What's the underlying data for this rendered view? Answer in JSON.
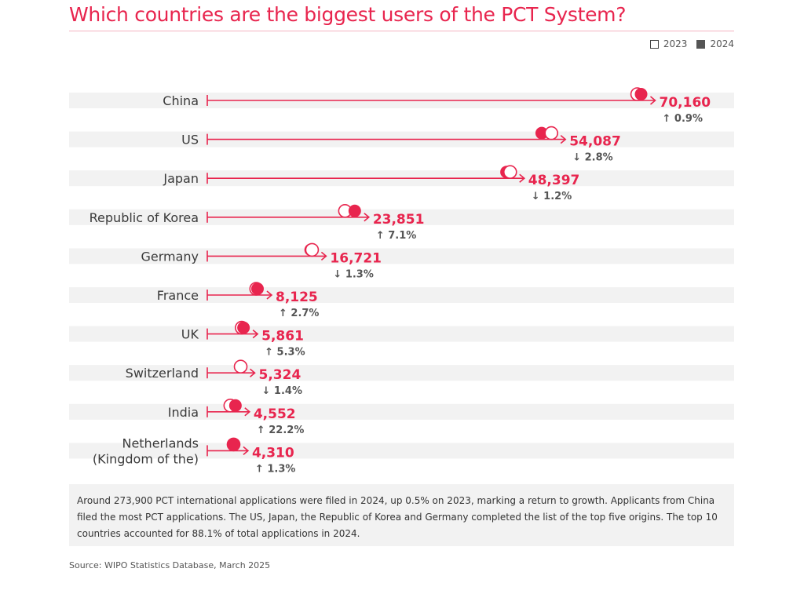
{
  "legend": {
    "label_2023": "2023",
    "label_2024": "2024"
  },
  "note": "Around 273,900 PCT international applications were filed in 2024, up 0.5% on 2023, marking a return to growth. Applicants from China filed the most PCT applications. The US, Japan, the Republic of Korea and Germany completed the list of the top five origins. The top 10 countries accounted for 88.1% of total applications in 2024.",
  "source": "Source: WIPO Statistics Database, March 2025",
  "colors": {
    "accent": "#e8254e",
    "row_band": "#f2f2f2",
    "text": "#3a3a3a"
  },
  "chart_data": {
    "type": "dot-arrow",
    "title": "Which countries are the biggest users of the PCT System?",
    "series": [
      {
        "name": "2023",
        "style": "open-circle"
      },
      {
        "name": "2024",
        "style": "filled-circle"
      }
    ],
    "xlim": [
      0,
      72000
    ],
    "grid": false,
    "legend_position": "top-right",
    "categories": [
      {
        "name": [
          "China"
        ],
        "value_2024": 70160,
        "value_label": "70,160",
        "direction": "up",
        "change": "0.9%"
      },
      {
        "name": [
          "US"
        ],
        "value_2024": 54087,
        "value_label": "54,087",
        "direction": "down",
        "change": "2.8%"
      },
      {
        "name": [
          "Japan"
        ],
        "value_2024": 48397,
        "value_label": "48,397",
        "direction": "down",
        "change": "1.2%"
      },
      {
        "name": [
          "Republic of Korea"
        ],
        "value_2024": 23851,
        "value_label": "23,851",
        "direction": "up",
        "change": "7.1%"
      },
      {
        "name": [
          "Germany"
        ],
        "value_2024": 16721,
        "value_label": "16,721",
        "direction": "down",
        "change": "1.3%"
      },
      {
        "name": [
          "France"
        ],
        "value_2024": 8125,
        "value_label": "8,125",
        "direction": "up",
        "change": "2.7%"
      },
      {
        "name": [
          "UK"
        ],
        "value_2024": 5861,
        "value_label": "5,861",
        "direction": "up",
        "change": "5.3%"
      },
      {
        "name": [
          "Switzerland"
        ],
        "value_2024": 5324,
        "value_label": "5,324",
        "direction": "down",
        "change": "1.4%"
      },
      {
        "name": [
          "India"
        ],
        "value_2024": 4552,
        "value_label": "4,552",
        "direction": "up",
        "change": "22.2%"
      },
      {
        "name": [
          "Netherlands",
          "(Kingdom of the)"
        ],
        "value_2024": 4310,
        "value_label": "4,310",
        "direction": "up",
        "change": "1.3%"
      }
    ]
  }
}
